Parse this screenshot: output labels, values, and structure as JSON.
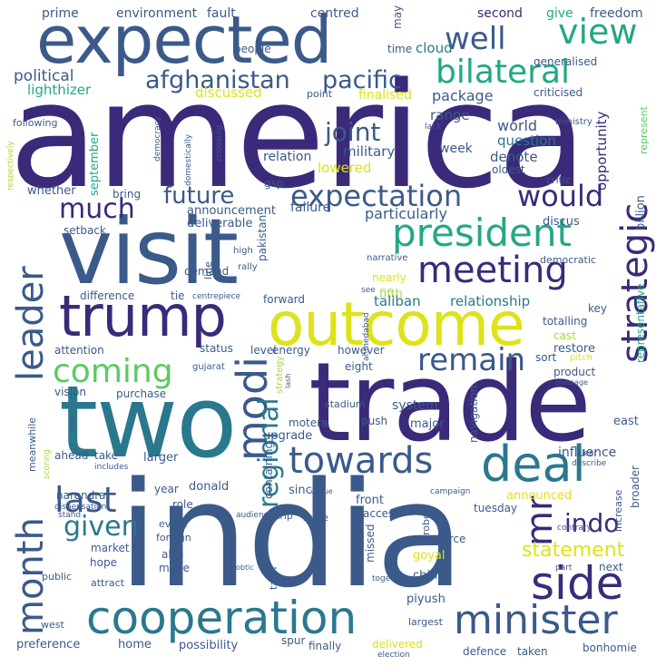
{
  "palette": {
    "dark_purple": "#440154",
    "indigo": "#3b2a7a",
    "slate_blue": "#3b5a8a",
    "teal": "#2a788e",
    "green_teal": "#22a884",
    "green": "#5ec962",
    "yellow_green": "#a8d83a",
    "yellow": "#dde318"
  },
  "words": [
    {
      "id": "america",
      "text": "america",
      "color": "#3b2a7a"
    },
    {
      "id": "india",
      "text": "india",
      "color": "#3b5a8a"
    },
    {
      "id": "trade",
      "text": "trade",
      "color": "#3b2a7a"
    },
    {
      "id": "two",
      "text": "two",
      "color": "#2a788e"
    },
    {
      "id": "visit",
      "text": "visit",
      "color": "#3b5a8a"
    },
    {
      "id": "expected",
      "text": "expected",
      "color": "#3b5a8a"
    },
    {
      "id": "outcome",
      "text": "outcome",
      "color": "#dde318"
    },
    {
      "id": "trump",
      "text": "trump",
      "color": "#3b2a7a"
    },
    {
      "id": "cooperation",
      "text": "cooperation",
      "color": "#2a788e"
    },
    {
      "id": "minister",
      "text": "minister",
      "color": "#3b5a8a"
    },
    {
      "id": "side",
      "text": "side",
      "color": "#3b2a7a"
    },
    {
      "id": "deal",
      "text": "deal",
      "color": "#2a788e"
    },
    {
      "id": "towards",
      "text": "towards",
      "color": "#3b5a8a"
    },
    {
      "id": "meeting",
      "text": "meeting",
      "color": "#3b2a7a"
    },
    {
      "id": "president",
      "text": "president",
      "color": "#22a884"
    },
    {
      "id": "expectation",
      "text": "expectation",
      "color": "#3b5a8a"
    },
    {
      "id": "bilateral",
      "text": "bilateral",
      "color": "#22a884"
    },
    {
      "id": "well",
      "text": "well",
      "color": "#3b5a8a"
    },
    {
      "id": "view",
      "text": "view",
      "color": "#22a884"
    },
    {
      "id": "afghanistan",
      "text": "afghanistan",
      "color": "#3b5a8a"
    },
    {
      "id": "pacific",
      "text": "pacific",
      "color": "#3b5a8a"
    },
    {
      "id": "leader",
      "text": "leader",
      "color": "#3b5a8a"
    },
    {
      "id": "month",
      "text": "month",
      "color": "#3b5a8a"
    },
    {
      "id": "modi",
      "text": "modi",
      "color": "#3b5a8a"
    },
    {
      "id": "last",
      "text": "last",
      "color": "#3b5a8a"
    },
    {
      "id": "coming",
      "text": "coming",
      "color": "#5ec962"
    },
    {
      "id": "remain",
      "text": "remain",
      "color": "#3b5a8a"
    },
    {
      "id": "strategic",
      "text": "strategic",
      "color": "#3b2a7a"
    },
    {
      "id": "regional",
      "text": "regional",
      "color": "#2a788e"
    },
    {
      "id": "mr",
      "text": "mr",
      "color": "#3b2a7a"
    },
    {
      "id": "indo",
      "text": "indo",
      "color": "#3b2a7a"
    },
    {
      "id": "given",
      "text": "given",
      "color": "#2a788e"
    },
    {
      "id": "statement",
      "text": "statement",
      "color": "#dde318"
    },
    {
      "id": "would",
      "text": "would",
      "color": "#3b2a7a"
    },
    {
      "id": "future",
      "text": "future",
      "color": "#3b5a8a"
    },
    {
      "id": "much",
      "text": "much",
      "color": "#3b2a7a"
    },
    {
      "id": "joint",
      "text": "joint",
      "color": "#3b5a8a"
    },
    {
      "id": "political",
      "text": "political",
      "color": "#3b5a8a"
    },
    {
      "id": "lighthizer",
      "text": "lighthizer",
      "color": "#22a884"
    },
    {
      "id": "discussed",
      "text": "discussed",
      "color": "#dde318"
    },
    {
      "id": "finalised",
      "text": "finalised",
      "color": "#dde318"
    },
    {
      "id": "package",
      "text": "package",
      "color": "#3b5a8a"
    },
    {
      "id": "range",
      "text": "range",
      "color": "#3b5a8a"
    },
    {
      "id": "world",
      "text": "world",
      "color": "#3b5a8a"
    },
    {
      "id": "question",
      "text": "question",
      "color": "#2a788e"
    },
    {
      "id": "military",
      "text": "military",
      "color": "#3b5a8a"
    },
    {
      "id": "week",
      "text": "week",
      "color": "#3b5a8a"
    },
    {
      "id": "relation",
      "text": "relation",
      "color": "#3b5a8a"
    },
    {
      "id": "lowered",
      "text": "lowered",
      "color": "#dde318"
    },
    {
      "id": "denote",
      "text": "denote",
      "color": "#3b5a8a"
    },
    {
      "id": "prime",
      "text": "prime",
      "color": "#3b5a8a"
    },
    {
      "id": "environment",
      "text": "environment",
      "color": "#3b5a8a"
    },
    {
      "id": "fault",
      "text": "fault",
      "color": "#3b5a8a"
    },
    {
      "id": "centred",
      "text": "centred",
      "color": "#3b5a8a"
    },
    {
      "id": "may",
      "text": "may",
      "color": "#3b5a8a"
    },
    {
      "id": "second",
      "text": "second",
      "color": "#3b2a7a"
    },
    {
      "id": "give",
      "text": "give",
      "color": "#22a884"
    },
    {
      "id": "freedom",
      "text": "freedom",
      "color": "#3b5a8a"
    },
    {
      "id": "people",
      "text": "people",
      "color": "#3b5a8a"
    },
    {
      "id": "time",
      "text": "time",
      "color": "#3b5a8a"
    },
    {
      "id": "cloud",
      "text": "cloud",
      "color": "#2a788e"
    },
    {
      "id": "generalised",
      "text": "generalised",
      "color": "#3b5a8a"
    },
    {
      "id": "point",
      "text": "point",
      "color": "#3b5a8a"
    },
    {
      "id": "criticised",
      "text": "criticised",
      "color": "#3b5a8a"
    },
    {
      "id": "lack",
      "text": "lack",
      "color": "#3b5a8a"
    },
    {
      "id": "ministry",
      "text": "ministry",
      "color": "#3b5a8a"
    },
    {
      "id": "oldest",
      "text": "oldest",
      "color": "#3b5a8a"
    },
    {
      "id": "critic",
      "text": "critic",
      "color": "#3b5a8a"
    },
    {
      "id": "opportunity",
      "text": "opportunity",
      "color": "#3b2a7a"
    },
    {
      "id": "represent",
      "text": "represent",
      "color": "#5ec962"
    },
    {
      "id": "following",
      "text": "following",
      "color": "#3b5a8a"
    },
    {
      "id": "respectively",
      "text": "respectively",
      "color": "#a8d83a"
    },
    {
      "id": "democracy",
      "text": "democracy",
      "color": "#3b5a8a"
    },
    {
      "id": "choosing",
      "text": "choosing",
      "color": "#3b5a8a"
    },
    {
      "id": "domestically",
      "text": "domestically",
      "color": "#3b5a8a"
    },
    {
      "id": "whether",
      "text": "whether",
      "color": "#3b5a8a"
    },
    {
      "id": "september",
      "text": "september",
      "color": "#22a884"
    },
    {
      "id": "bring",
      "text": "bring",
      "color": "#3b5a8a"
    },
    {
      "id": "gsp",
      "text": "gsp",
      "color": "#3b5a8a"
    },
    {
      "id": "failure",
      "text": "failure",
      "color": "#3b5a8a"
    },
    {
      "id": "announcement",
      "text": "announcement",
      "color": "#3b5a8a"
    },
    {
      "id": "deliverable",
      "text": "deliverable",
      "color": "#3b5a8a"
    },
    {
      "id": "particularly",
      "text": "particularly",
      "color": "#3b5a8a"
    },
    {
      "id": "billion",
      "text": "billion",
      "color": "#3b5a8a"
    },
    {
      "id": "discus",
      "text": "discus",
      "color": "#3b5a8a"
    },
    {
      "id": "pakistan",
      "text": "pakistan",
      "color": "#3b5a8a"
    },
    {
      "id": "narrative",
      "text": "narrative",
      "color": "#3b5a8a"
    },
    {
      "id": "democratic",
      "text": "democratic",
      "color": "#3b5a8a"
    },
    {
      "id": "setback",
      "text": "setback",
      "color": "#3b5a8a"
    },
    {
      "id": "nearly",
      "text": "nearly",
      "color": "#dde318"
    },
    {
      "id": "fifth",
      "text": "fifth",
      "color": "#a8d83a"
    },
    {
      "id": "high",
      "text": "high",
      "color": "#3b5a8a"
    },
    {
      "id": "line",
      "text": "line",
      "color": "#3b5a8a"
    },
    {
      "id": "demand",
      "text": "demand",
      "color": "#3b5a8a"
    },
    {
      "id": "rally",
      "text": "rally",
      "color": "#3b5a8a"
    },
    {
      "id": "taliban",
      "text": "taliban",
      "color": "#2a788e"
    },
    {
      "id": "relationship",
      "text": "relationship",
      "color": "#2a788e"
    },
    {
      "id": "representative",
      "text": "representative",
      "color": "#22a884"
    },
    {
      "id": "difference",
      "text": "difference",
      "color": "#3b5a8a"
    },
    {
      "id": "tie",
      "text": "tie",
      "color": "#3b5a8a"
    },
    {
      "id": "centrepiece",
      "text": "centrepiece",
      "color": "#3b5a8a"
    },
    {
      "id": "forward",
      "text": "forward",
      "color": "#3b5a8a"
    },
    {
      "id": "see",
      "text": "see",
      "color": "#3b5a8a"
    },
    {
      "id": "key",
      "text": "key",
      "color": "#3b5a8a"
    },
    {
      "id": "totalling",
      "text": "totalling",
      "color": "#3b5a8a"
    },
    {
      "id": "ahmedabad",
      "text": "ahmedabad",
      "color": "#3b5a8a"
    },
    {
      "id": "cast",
      "text": "cast",
      "color": "#a8d83a"
    },
    {
      "id": "attention",
      "text": "attention",
      "color": "#3b5a8a"
    },
    {
      "id": "status",
      "text": "status",
      "color": "#3b5a8a"
    },
    {
      "id": "level",
      "text": "level",
      "color": "#3b5a8a"
    },
    {
      "id": "energy",
      "text": "energy",
      "color": "#3b5a8a"
    },
    {
      "id": "however",
      "text": "however",
      "color": "#3b5a8a"
    },
    {
      "id": "restore",
      "text": "restore",
      "color": "#3b5a8a"
    },
    {
      "id": "gujarat",
      "text": "gujarat",
      "color": "#3b5a8a"
    },
    {
      "id": "sort",
      "text": "sort",
      "color": "#3b5a8a"
    },
    {
      "id": "pitch",
      "text": "pitch",
      "color": "#dde318"
    },
    {
      "id": "eight",
      "text": "eight",
      "color": "#3b5a8a"
    },
    {
      "id": "product",
      "text": "product",
      "color": "#3b5a8a"
    },
    {
      "id": "message",
      "text": "message",
      "color": "#3b5a8a"
    },
    {
      "id": "vision",
      "text": "vision",
      "color": "#3b5a8a"
    },
    {
      "id": "purchase",
      "text": "purchase",
      "color": "#3b5a8a"
    },
    {
      "id": "strategy",
      "text": "strategy",
      "color": "#a8d83a"
    },
    {
      "id": "lash",
      "text": "lash",
      "color": "#3b5a8a"
    },
    {
      "id": "stadium",
      "text": "stadium",
      "color": "#3b5a8a"
    },
    {
      "id": "system",
      "text": "system",
      "color": "#3b5a8a"
    },
    {
      "id": "east",
      "text": "east",
      "color": "#3b5a8a"
    },
    {
      "id": "one",
      "text": "one",
      "color": "#3b5a8a"
    },
    {
      "id": "meanwhile",
      "text": "meanwhile",
      "color": "#3b5a8a"
    },
    {
      "id": "motera",
      "text": "motera",
      "color": "#3b5a8a"
    },
    {
      "id": "push",
      "text": "push",
      "color": "#3b5a8a"
    },
    {
      "id": "major",
      "text": "major",
      "color": "#3b5a8a"
    },
    {
      "id": "navigation",
      "text": "navigation",
      "color": "#3b5a8a"
    },
    {
      "id": "influence",
      "text": "influence",
      "color": "#3b5a8a"
    },
    {
      "id": "upgrade",
      "text": "upgrade",
      "color": "#3b5a8a"
    },
    {
      "id": "containing",
      "text": "containing",
      "color": "#3b5a8a"
    },
    {
      "id": "clear",
      "text": "clear",
      "color": "#3b5a8a"
    },
    {
      "id": "describe",
      "text": "describe",
      "color": "#3b5a8a"
    },
    {
      "id": "broader",
      "text": "broader",
      "color": "#3b5a8a"
    },
    {
      "id": "scoring",
      "text": "scoring",
      "color": "#a8d83a"
    },
    {
      "id": "ahead",
      "text": "ahead",
      "color": "#3b5a8a"
    },
    {
      "id": "take",
      "text": "take",
      "color": "#3b5a8a"
    },
    {
      "id": "larger",
      "text": "larger",
      "color": "#3b5a8a"
    },
    {
      "id": "includes",
      "text": "includes",
      "color": "#3b5a8a"
    },
    {
      "id": "year",
      "text": "year",
      "color": "#3b5a8a"
    },
    {
      "id": "donald",
      "text": "donald",
      "color": "#3b5a8a"
    },
    {
      "id": "since",
      "text": "since",
      "color": "#3b5a8a"
    },
    {
      "id": "announced",
      "text": "announced",
      "color": "#dde318"
    },
    {
      "id": "increase",
      "text": "increase",
      "color": "#3b5a8a"
    },
    {
      "id": "narendra",
      "text": "narendra",
      "color": "#3b5a8a"
    },
    {
      "id": "dispensation",
      "text": "dispensation",
      "color": "#3b5a8a"
    },
    {
      "id": "role",
      "text": "role",
      "color": "#3b5a8a"
    },
    {
      "id": "venue",
      "text": "venue",
      "color": "#3b5a8a"
    },
    {
      "id": "front",
      "text": "front",
      "color": "#3b5a8a"
    },
    {
      "id": "campaign",
      "text": "campaign",
      "color": "#3b5a8a"
    },
    {
      "id": "audience",
      "text": "audience",
      "color": "#3b5a8a"
    },
    {
      "id": "trip",
      "text": "trip",
      "color": "#3b5a8a"
    },
    {
      "id": "state",
      "text": "state",
      "color": "#3b5a8a"
    },
    {
      "id": "robert",
      "text": "robert",
      "color": "#3b5a8a"
    },
    {
      "id": "tuesday",
      "text": "tuesday",
      "color": "#3b5a8a"
    },
    {
      "id": "contrary",
      "text": "contrary",
      "color": "#3b5a8a"
    },
    {
      "id": "stand",
      "text": "stand",
      "color": "#3b5a8a"
    },
    {
      "id": "event",
      "text": "event",
      "color": "#3b5a8a"
    },
    {
      "id": "access",
      "text": "access",
      "color": "#3b5a8a"
    },
    {
      "id": "foreign",
      "text": "foreign",
      "color": "#3b5a8a"
    },
    {
      "id": "commerce",
      "text": "commerce",
      "color": "#3b5a8a"
    },
    {
      "id": "market",
      "text": "market",
      "color": "#3b5a8a"
    },
    {
      "id": "also",
      "text": "also",
      "color": "#3b5a8a"
    },
    {
      "id": "missed",
      "text": "missed",
      "color": "#3b5a8a"
    },
    {
      "id": "goyal",
      "text": "goyal",
      "color": "#dde318"
    },
    {
      "id": "hope",
      "text": "hope",
      "color": "#3b5a8a"
    },
    {
      "id": "made",
      "text": "made",
      "color": "#3b5a8a"
    },
    {
      "id": "public",
      "text": "public",
      "color": "#3b5a8a"
    },
    {
      "id": "obtic",
      "text": "obtic",
      "color": "#3b5a8a"
    },
    {
      "id": "answer",
      "text": "answer",
      "color": "#3b5a8a"
    },
    {
      "id": "china",
      "text": "china",
      "color": "#3b5a8a"
    },
    {
      "id": "part",
      "text": "part",
      "color": "#3b5a8a"
    },
    {
      "id": "next",
      "text": "next",
      "color": "#3b5a8a"
    },
    {
      "id": "tariff",
      "text": "tariff",
      "color": "#3b5a8a"
    },
    {
      "id": "together",
      "text": "together",
      "color": "#3b5a8a"
    },
    {
      "id": "attract",
      "text": "attract",
      "color": "#3b5a8a"
    },
    {
      "id": "piyush",
      "text": "piyush",
      "color": "#3b5a8a"
    },
    {
      "id": "west",
      "text": "west",
      "color": "#3b5a8a"
    },
    {
      "id": "largest",
      "text": "largest",
      "color": "#3b5a8a"
    },
    {
      "id": "preference",
      "text": "preference",
      "color": "#3b5a8a"
    },
    {
      "id": "home",
      "text": "home",
      "color": "#3b5a8a"
    },
    {
      "id": "possibility",
      "text": "possibility",
      "color": "#3b5a8a"
    },
    {
      "id": "spur",
      "text": "spur",
      "color": "#3b5a8a"
    },
    {
      "id": "finally",
      "text": "finally",
      "color": "#3b5a8a"
    },
    {
      "id": "delivered",
      "text": "delivered",
      "color": "#dde318"
    },
    {
      "id": "election",
      "text": "election",
      "color": "#3b5a8a"
    },
    {
      "id": "defence",
      "text": "defence",
      "color": "#3b5a8a"
    },
    {
      "id": "taken",
      "text": "taken",
      "color": "#3b5a8a"
    },
    {
      "id": "bonhomie",
      "text": "bonhomie",
      "color": "#3b5a8a"
    }
  ]
}
